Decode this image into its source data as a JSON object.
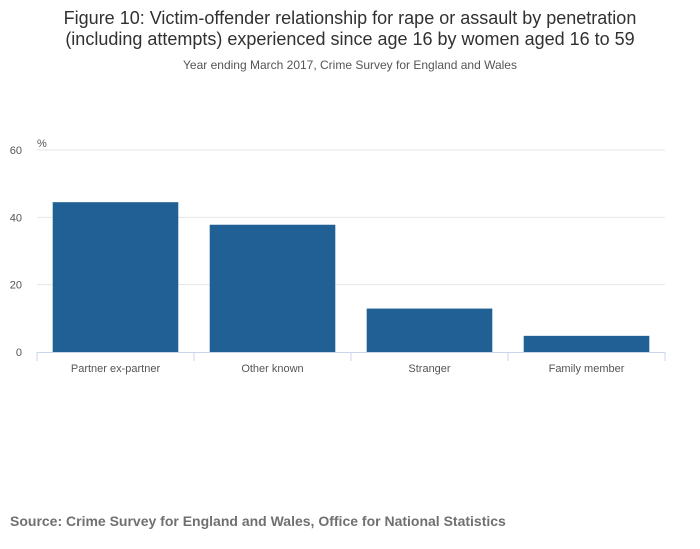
{
  "header": {
    "title_line1": "Figure 10: Victim-offender relationship for rape or assault by penetration",
    "title_line2": "(including attempts) experienced since age 16 by women aged 16 to 59",
    "subtitle": "Year ending March 2017, Crime Survey for England and Wales"
  },
  "footer": {
    "source": "Source: Crime Survey for England and Wales, Office for National Statistics"
  },
  "chart_data": {
    "type": "bar",
    "title": "Figure 10: Victim-offender relationship for rape or assault by penetration (including attempts) experienced since age 16 by women aged 16 to 59",
    "subtitle": "Year ending March 2017, Crime Survey for England and Wales",
    "ylabel": "%",
    "xlabel": "",
    "categories": [
      "Partner ex-partner",
      "Other known",
      "Stranger",
      "Family member"
    ],
    "values": [
      44.5,
      37.8,
      12.9,
      4.8
    ],
    "ylim": [
      0,
      60
    ],
    "yticks": [
      0,
      20,
      40,
      60
    ],
    "grid": true,
    "bar_color": "#206095",
    "grid_color": "#e6e6e6",
    "axis_color": "#ccd6eb"
  }
}
